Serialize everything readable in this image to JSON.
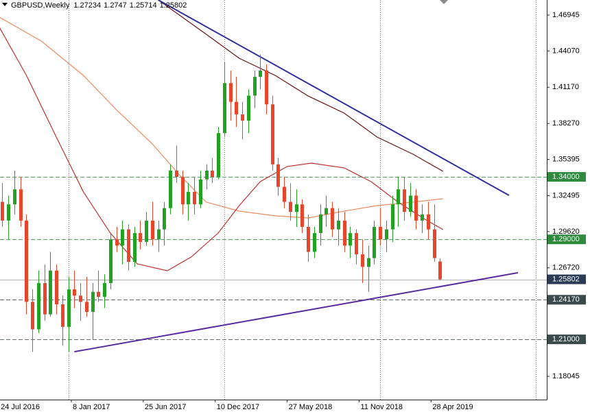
{
  "chart_data": {
    "type": "candlestick",
    "title": "GBPUSD,Weekly",
    "x": [
      1,
      3,
      5,
      7,
      9,
      11,
      13,
      15,
      17,
      19,
      21,
      23,
      25,
      27,
      29,
      31,
      33,
      35,
      37,
      39,
      41,
      43,
      45,
      47,
      49,
      51,
      53,
      55,
      57,
      59,
      61,
      63,
      65,
      67,
      69,
      71,
      73,
      75,
      77,
      79,
      81,
      83,
      85,
      87,
      89,
      91,
      93,
      95,
      97,
      99,
      101,
      103,
      105,
      107,
      109,
      111,
      113,
      115,
      117,
      119,
      121,
      123,
      125,
      127,
      129,
      131,
      133,
      135,
      137,
      139,
      141,
      143,
      145,
      147
    ],
    "open": [
      1.32,
      1.305,
      1.318,
      1.33,
      1.305,
      1.24,
      1.218,
      1.255,
      1.23,
      1.265,
      1.238,
      1.22,
      1.25,
      1.245,
      1.24,
      1.232,
      1.248,
      1.244,
      1.255,
      1.29,
      1.285,
      1.298,
      1.272,
      1.295,
      1.288,
      1.305,
      1.29,
      1.298,
      1.315,
      1.345,
      1.34,
      1.318,
      1.328,
      1.318,
      1.338,
      1.345,
      1.34,
      1.375,
      1.415,
      1.4,
      1.39,
      1.385,
      1.405,
      1.42,
      1.425,
      1.398,
      1.35,
      1.332,
      1.32,
      1.312,
      1.318,
      1.3,
      1.28,
      1.295,
      1.31,
      1.315,
      1.298,
      1.305,
      1.285,
      1.295,
      1.278,
      1.268,
      1.275,
      1.3,
      1.29,
      1.298,
      1.318,
      1.33,
      1.312,
      1.325,
      1.305,
      1.31,
      1.298,
      1.27234
    ],
    "high": [
      1.335,
      1.325,
      1.345,
      1.34,
      1.31,
      1.25,
      1.265,
      1.27,
      1.28,
      1.27,
      1.245,
      1.26,
      1.265,
      1.255,
      1.26,
      1.255,
      1.265,
      1.262,
      1.295,
      1.3,
      1.305,
      1.302,
      1.3,
      1.305,
      1.312,
      1.32,
      1.305,
      1.32,
      1.35,
      1.365,
      1.345,
      1.335,
      1.34,
      1.345,
      1.35,
      1.355,
      1.38,
      1.432,
      1.425,
      1.42,
      1.4,
      1.41,
      1.425,
      1.438,
      1.43,
      1.405,
      1.355,
      1.34,
      1.335,
      1.33,
      1.322,
      1.31,
      1.3,
      1.318,
      1.325,
      1.32,
      1.315,
      1.312,
      1.3,
      1.298,
      1.29,
      1.285,
      1.305,
      1.315,
      1.305,
      1.325,
      1.34,
      1.34,
      1.335,
      1.33,
      1.318,
      1.32,
      1.318,
      1.2747
    ],
    "low": [
      1.3,
      1.29,
      1.31,
      1.3,
      1.23,
      1.2,
      1.215,
      1.225,
      1.228,
      1.23,
      1.205,
      1.2,
      1.235,
      1.225,
      1.228,
      1.21,
      1.24,
      1.235,
      1.25,
      1.28,
      1.27,
      1.265,
      1.268,
      1.282,
      1.285,
      1.285,
      1.28,
      1.285,
      1.31,
      1.335,
      1.31,
      1.305,
      1.31,
      1.315,
      1.33,
      1.335,
      1.338,
      1.372,
      1.385,
      1.38,
      1.37,
      1.375,
      1.395,
      1.41,
      1.39,
      1.345,
      1.325,
      1.315,
      1.305,
      1.3,
      1.295,
      1.272,
      1.275,
      1.285,
      1.3,
      1.292,
      1.285,
      1.28,
      1.275,
      1.27,
      1.255,
      1.248,
      1.27,
      1.285,
      1.28,
      1.288,
      1.3,
      1.305,
      1.308,
      1.298,
      1.295,
      1.29,
      1.272,
      1.25714
    ],
    "close": [
      1.305,
      1.318,
      1.33,
      1.305,
      1.24,
      1.218,
      1.255,
      1.23,
      1.265,
      1.238,
      1.22,
      1.25,
      1.245,
      1.24,
      1.232,
      1.248,
      1.244,
      1.255,
      1.29,
      1.285,
      1.298,
      1.272,
      1.295,
      1.288,
      1.305,
      1.29,
      1.298,
      1.315,
      1.345,
      1.34,
      1.318,
      1.328,
      1.318,
      1.338,
      1.345,
      1.34,
      1.375,
      1.415,
      1.4,
      1.39,
      1.385,
      1.405,
      1.42,
      1.425,
      1.398,
      1.35,
      1.332,
      1.32,
      1.312,
      1.318,
      1.3,
      1.28,
      1.295,
      1.31,
      1.315,
      1.298,
      1.305,
      1.285,
      1.295,
      1.278,
      1.268,
      1.275,
      1.3,
      1.29,
      1.298,
      1.318,
      1.33,
      1.312,
      1.325,
      1.305,
      1.31,
      1.298,
      1.275,
      1.25802
    ],
    "up_color": "#22a122",
    "down_color": "#e8462a",
    "xlim": [
      0.2,
      182.6
    ],
    "ylim": [
      1.1618,
      1.4815
    ],
    "xticks": [
      {
        "value": 0,
        "label": "24 Jul 2016"
      },
      {
        "value": 24,
        "label": "8 Jan 2017"
      },
      {
        "value": 48,
        "label": "25 Jun 2017"
      },
      {
        "value": 72,
        "label": "10 Dec 2017"
      },
      {
        "value": 96,
        "label": "27 May 2018"
      },
      {
        "value": 120,
        "label": "11 Nov 2018"
      },
      {
        "value": 144,
        "label": "28 Apr 2019"
      }
    ],
    "yticks": [
      1.46945,
      {
        "value": 1.4407,
        "label": "1.44070"
      },
      {
        "value": 1.4117,
        "label": "1.41170"
      },
      {
        "value": 1.3827,
        "label": "1.38270"
      },
      1.35395,
      1.32495,
      {
        "value": 1.2962,
        "label": "1.29620"
      },
      {
        "value": 1.2672,
        "label": "1.26720"
      },
      1.18045
    ],
    "separators": [
      23,
      75,
      127,
      179
    ],
    "levels": [
      {
        "value": 1.34,
        "label": "1.34000",
        "color": "#2e8b3e"
      },
      {
        "value": 1.29,
        "label": "1.29000",
        "color": "#2e8b3e"
      },
      {
        "value": 1.2417,
        "label": "1.24170",
        "color": "#3b4a4a"
      },
      {
        "value": 1.21,
        "label": "1.21000",
        "color": "#3b4a4a"
      }
    ],
    "current_color": "#2b3a55",
    "moving_averages": [
      {
        "color": "#f08a5d",
        "x": [
          0,
          14,
          28,
          39,
          51,
          60,
          69,
          80,
          92,
          103,
          115,
          126,
          138,
          148
        ],
        "values": [
          1.4678,
          1.4486,
          1.4212,
          1.3938,
          1.3664,
          1.3417,
          1.3198,
          1.3126,
          1.3088,
          1.3071,
          1.3126,
          1.317,
          1.3198,
          1.3225
        ]
      },
      {
        "color": "#c0302a",
        "x": [
          0,
          9,
          19,
          28,
          37,
          46,
          56,
          64,
          73,
          80,
          87,
          96,
          104,
          115,
          124,
          133,
          142,
          148
        ],
        "values": [
          1.4596,
          1.4212,
          1.3718,
          1.328,
          1.2951,
          1.2704,
          1.2649,
          1.2759,
          1.2951,
          1.317,
          1.3362,
          1.3483,
          1.351,
          1.3472,
          1.3362,
          1.3198,
          1.306,
          1.2978
        ]
      },
      {
        "color": "#6b1010",
        "x": [
          53,
          69,
          80,
          92,
          103,
          115,
          126,
          138,
          148
        ],
        "values": [
          1.4815,
          1.4541,
          1.4349,
          1.4212,
          1.4047,
          1.391,
          1.3718,
          1.3581,
          1.3444
        ]
      }
    ],
    "trendlines": [
      {
        "color": "#2e2e9e",
        "x": [
          53,
          170
        ],
        "values": [
          1.4815,
          1.3252
        ]
      },
      {
        "color": "#5a2aa0",
        "x": [
          25,
          173
        ],
        "values": [
          1.2001,
          1.2633
        ]
      }
    ]
  }
}
